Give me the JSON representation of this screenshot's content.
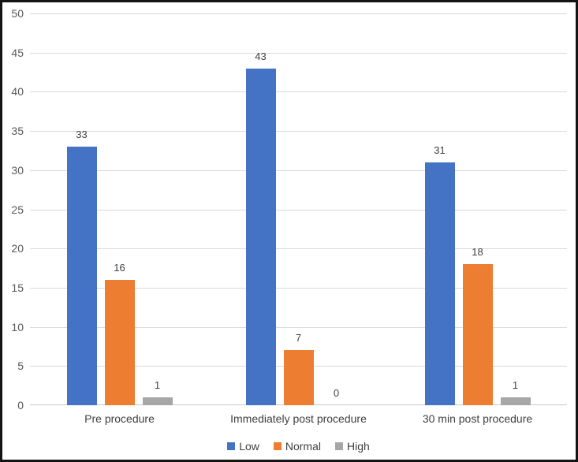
{
  "chart_data": {
    "type": "bar",
    "title": "",
    "xlabel": "",
    "ylabel": "",
    "categories": [
      "Pre procedure",
      "Immediately post procedure",
      "30 min post procedure"
    ],
    "series": [
      {
        "name": "Low",
        "color": "#4472C4",
        "values": [
          33,
          43,
          31
        ]
      },
      {
        "name": "Normal",
        "color": "#ED7D31",
        "values": [
          16,
          7,
          18
        ]
      },
      {
        "name": "High",
        "color": "#A6A6A6",
        "values": [
          1,
          0,
          1
        ]
      }
    ],
    "ylim": [
      0,
      50
    ],
    "ytick_step": 5,
    "yticks": [
      0,
      5,
      10,
      15,
      20,
      25,
      30,
      35,
      40,
      45,
      50
    ],
    "grid": true,
    "value_labels": true,
    "legend_position": "bottom-center"
  },
  "colors": {
    "background": "#FFFFFF",
    "frame_border": "#141414",
    "gridline": "#D9D9D9",
    "axis_line": "#C6C6C6",
    "tick_text": "#595959",
    "label_text": "#404040"
  }
}
